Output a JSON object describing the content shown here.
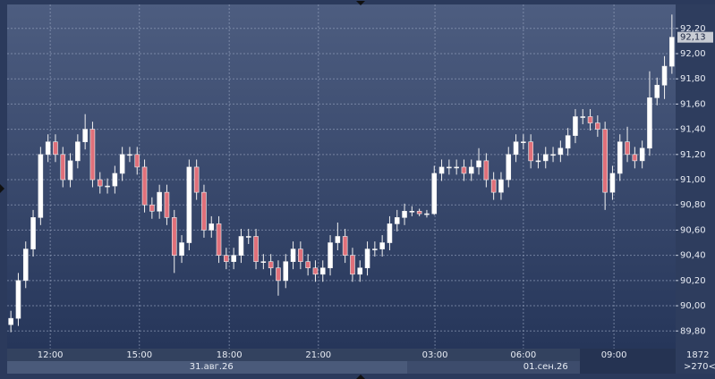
{
  "chart_data": {
    "type": "candlestick",
    "open": [
      89.85,
      89.9,
      90.2,
      90.45,
      90.7,
      91.2,
      91.3,
      91.2,
      91.0,
      91.15,
      91.3,
      91.4,
      91.0,
      90.95,
      90.95,
      91.05,
      91.2,
      91.2,
      91.1,
      90.8,
      90.75,
      90.9,
      90.7,
      90.4,
      90.5,
      91.1,
      90.9,
      90.6,
      90.65,
      90.4,
      90.35,
      90.4,
      90.55,
      90.55,
      90.35,
      90.35,
      90.3,
      90.2,
      90.35,
      90.45,
      90.35,
      90.3,
      90.25,
      90.3,
      90.5,
      90.55,
      90.4,
      90.25,
      90.3,
      90.45,
      90.45,
      90.5,
      90.65,
      90.7,
      90.75,
      90.75,
      90.73,
      90.73,
      91.05,
      91.1,
      91.1,
      91.1,
      91.05,
      91.1,
      91.15,
      91.0,
      90.9,
      91.0,
      91.2,
      91.3,
      91.3,
      91.15,
      91.15,
      91.2,
      91.2,
      91.25,
      91.35,
      91.5,
      91.5,
      91.45,
      91.4,
      90.9,
      91.05,
      91.3,
      91.2,
      91.15,
      91.25,
      91.65,
      91.75,
      91.9
    ],
    "high": [
      89.96,
      90.26,
      90.51,
      90.76,
      91.26,
      91.36,
      91.36,
      91.26,
      91.21,
      91.36,
      91.52,
      91.46,
      91.06,
      91.01,
      91.11,
      91.26,
      91.26,
      91.26,
      91.16,
      90.86,
      90.96,
      90.96,
      90.76,
      90.56,
      91.16,
      91.16,
      90.96,
      90.71,
      90.71,
      90.46,
      90.46,
      90.61,
      90.61,
      90.61,
      90.41,
      90.41,
      90.36,
      90.41,
      90.51,
      90.51,
      90.41,
      90.36,
      90.36,
      90.56,
      90.66,
      90.61,
      90.46,
      90.36,
      90.51,
      90.51,
      90.56,
      90.71,
      90.76,
      90.81,
      90.79,
      90.77,
      90.76,
      91.11,
      91.16,
      91.16,
      91.16,
      91.16,
      91.16,
      91.25,
      91.21,
      91.06,
      91.06,
      91.26,
      91.36,
      91.36,
      91.36,
      91.21,
      91.26,
      91.26,
      91.31,
      91.41,
      91.56,
      91.56,
      91.56,
      91.51,
      91.46,
      91.11,
      91.36,
      91.42,
      91.26,
      91.31,
      91.86,
      91.81,
      91.98,
      92.31
    ],
    "low": [
      89.79,
      89.84,
      90.14,
      90.39,
      90.64,
      91.14,
      91.14,
      90.94,
      90.94,
      91.09,
      91.24,
      90.94,
      90.89,
      90.89,
      90.89,
      90.99,
      91.14,
      91.04,
      90.74,
      90.69,
      90.69,
      90.64,
      90.26,
      90.34,
      90.44,
      90.84,
      90.54,
      90.54,
      90.34,
      90.29,
      90.29,
      90.34,
      90.49,
      90.29,
      90.29,
      90.24,
      90.08,
      90.14,
      90.29,
      90.29,
      90.24,
      90.19,
      90.19,
      90.24,
      90.44,
      90.34,
      90.19,
      90.19,
      90.24,
      90.39,
      90.39,
      90.44,
      90.59,
      90.64,
      90.71,
      90.71,
      90.7,
      90.72,
      90.99,
      91.04,
      91.04,
      90.99,
      90.99,
      91.04,
      90.94,
      90.84,
      90.84,
      90.94,
      91.14,
      91.24,
      91.09,
      91.09,
      91.09,
      91.14,
      91.14,
      91.19,
      91.29,
      91.44,
      91.39,
      91.34,
      90.76,
      90.84,
      90.99,
      91.14,
      91.09,
      91.09,
      91.19,
      91.59,
      91.64,
      91.84
    ],
    "close": [
      89.9,
      90.2,
      90.45,
      90.7,
      91.2,
      91.3,
      91.2,
      91.0,
      91.15,
      91.3,
      91.4,
      91.0,
      90.95,
      90.95,
      91.05,
      91.2,
      91.2,
      91.1,
      90.8,
      90.75,
      90.9,
      90.7,
      90.4,
      90.5,
      91.1,
      90.9,
      90.6,
      90.65,
      90.4,
      90.35,
      90.4,
      90.55,
      90.55,
      90.35,
      90.35,
      90.3,
      90.2,
      90.35,
      90.45,
      90.35,
      90.3,
      90.25,
      90.3,
      90.5,
      90.55,
      90.4,
      90.25,
      90.3,
      90.45,
      90.45,
      90.5,
      90.65,
      90.7,
      90.75,
      90.75,
      90.73,
      90.73,
      91.05,
      91.1,
      91.1,
      91.1,
      91.05,
      91.1,
      91.15,
      91.0,
      90.9,
      91.0,
      91.2,
      91.3,
      91.3,
      91.15,
      91.15,
      91.2,
      91.2,
      91.25,
      91.35,
      91.5,
      91.5,
      91.45,
      91.4,
      90.9,
      91.05,
      91.3,
      91.2,
      91.15,
      91.25,
      91.65,
      91.75,
      91.9,
      92.13
    ],
    "up_color": "#ffffff",
    "down_color": "#e0707a",
    "xlim": [
      -0.5,
      89.5
    ],
    "xticks": [
      {
        "value": 5.3,
        "label": "12:00"
      },
      {
        "value": 17.3,
        "label": "15:00"
      },
      {
        "value": 29.4,
        "label": "18:00"
      },
      {
        "value": 41.4,
        "label": "21:00"
      },
      {
        "value": 57.1,
        "label": "03:00"
      },
      {
        "value": 69,
        "label": "06:00"
      },
      {
        "value": 81.2,
        "label": "09:00"
      }
    ],
    "date_ticks": [
      {
        "value": 27,
        "label": "31.авг.26"
      },
      {
        "value": 72,
        "label": "01.сен.26"
      }
    ],
    "ylim": [
      89.66,
      92.39
    ],
    "yticks": [
      {
        "value": 89.8,
        "label": "89,80"
      },
      {
        "value": 90,
        "label": "90,00"
      },
      {
        "value": 90.2,
        "label": "90,20"
      },
      {
        "value": 90.4,
        "label": "90,40"
      },
      {
        "value": 90.6,
        "label": "90,60"
      },
      {
        "value": 90.8,
        "label": "90,80"
      },
      {
        "value": 91,
        "label": "91,00"
      },
      {
        "value": 91.2,
        "label": "91,20"
      },
      {
        "value": 91.4,
        "label": "91,40"
      },
      {
        "value": 91.6,
        "label": "91,60"
      },
      {
        "value": 91.8,
        "label": "91,80"
      },
      {
        "value": 92,
        "label": "92,00"
      },
      {
        "value": 92.2,
        "label": "92,20"
      }
    ],
    "last_price": {
      "value": 92.13,
      "label": "92,13"
    },
    "grid": true,
    "corner_labels": [
      "1872",
      ">270<"
    ]
  }
}
